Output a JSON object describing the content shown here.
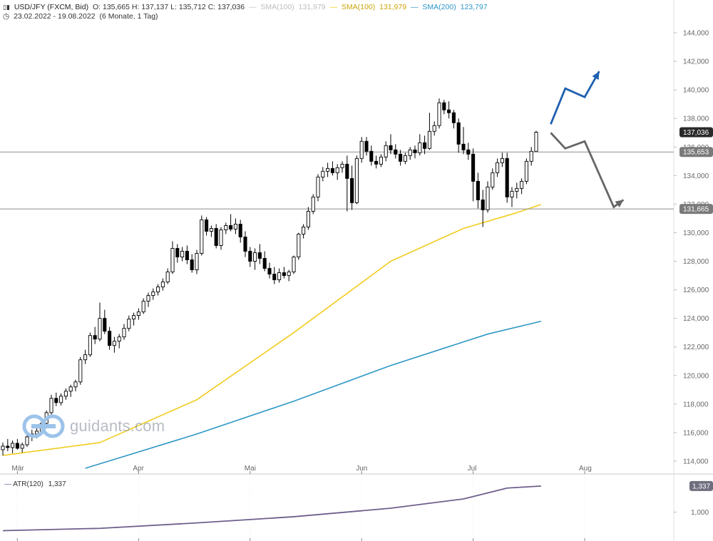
{
  "header": {
    "instrument_icon": "candlestick-icon",
    "symbol": "USD/JFY (FXCM, Bid)",
    "ohlc": "O: 135,665  H: 137,137  L: 135,712  C: 137,036",
    "sma_a_label": "SMA(100)",
    "sma_a_value": "131,979",
    "sma_a_color": "#c8c8c8",
    "sma_b_label": "SMA(100)",
    "sma_b_value": "131,979",
    "sma_b_color": "#f2cc1f",
    "sma_c_label": "SMA(200)",
    "sma_c_value": "123,797",
    "sma_c_color": "#2f97c6",
    "clock_icon": "clock-icon",
    "range": "23.02.2022 - 19.08.2022",
    "period": "(6 Monate, 1 Tag)"
  },
  "watermark": {
    "logo_icon": "guidants-logo-icon",
    "text": "guidants.com"
  },
  "indicator": {
    "label": "ATR(120)",
    "value": "1,337",
    "current_badge": "1,337",
    "axis_tick": "1,000",
    "color": "#6e5f8c"
  },
  "chart_data": {
    "type": "candlestick",
    "y_ticks": [
      "144,000",
      "142,000",
      "140,000",
      "138,000",
      "136,000",
      "134,000",
      "132,000",
      "130,000",
      "128,000",
      "126,000",
      "124,000",
      "122,000",
      "120,000",
      "118,000",
      "116,000",
      "114,000"
    ],
    "y_tick_values": [
      144,
      142,
      140,
      138,
      136,
      134,
      132,
      130,
      128,
      126,
      124,
      122,
      120,
      118,
      116,
      114
    ],
    "ylim": [
      113.2,
      144.8
    ],
    "x_labels": [
      "Mär",
      "Apr",
      "Mai",
      "Jun",
      "Jul",
      "Aug"
    ],
    "x_label_index": [
      3,
      28,
      51,
      74,
      97,
      120
    ],
    "n_days": 140,
    "horizontal_lines": [
      {
        "value": 135.653,
        "label": "135,653"
      },
      {
        "value": 131.665,
        "label": "131,665"
      }
    ],
    "last_price_badge": {
      "value": 137.036,
      "label": "137,036"
    },
    "candles": [
      [
        114.8,
        115.3,
        114.4,
        115.05
      ],
      [
        115.05,
        115.55,
        114.7,
        114.95
      ],
      [
        114.95,
        115.45,
        114.55,
        115.25
      ],
      [
        115.25,
        115.55,
        114.8,
        114.9
      ],
      [
        114.9,
        115.3,
        114.6,
        115.15
      ],
      [
        115.15,
        115.85,
        115.0,
        115.7
      ],
      [
        115.7,
        116.2,
        115.4,
        115.9
      ],
      [
        115.9,
        116.3,
        115.6,
        116.1
      ],
      [
        116.1,
        116.85,
        115.9,
        116.65
      ],
      [
        116.65,
        117.55,
        116.5,
        117.4
      ],
      [
        117.4,
        118.65,
        117.25,
        118.4
      ],
      [
        118.4,
        118.8,
        117.85,
        118.1
      ],
      [
        118.1,
        118.75,
        117.9,
        118.55
      ],
      [
        118.55,
        119.1,
        118.3,
        118.9
      ],
      [
        118.9,
        119.35,
        118.5,
        119.2
      ],
      [
        119.2,
        119.7,
        118.9,
        119.55
      ],
      [
        119.55,
        121.3,
        119.35,
        121.1
      ],
      [
        121.1,
        121.8,
        120.8,
        121.45
      ],
      [
        121.45,
        123.0,
        121.3,
        122.8
      ],
      [
        122.8,
        123.4,
        122.2,
        122.55
      ],
      [
        122.55,
        125.1,
        122.4,
        124.0
      ],
      [
        124.0,
        124.6,
        122.9,
        123.1
      ],
      [
        123.1,
        123.4,
        121.8,
        122.1
      ],
      [
        122.1,
        122.7,
        121.6,
        122.4
      ],
      [
        122.4,
        122.9,
        121.9,
        122.7
      ],
      [
        122.7,
        123.6,
        122.5,
        123.3
      ],
      [
        123.3,
        124.2,
        123.1,
        123.95
      ],
      [
        123.95,
        124.4,
        123.5,
        124.2
      ],
      [
        124.2,
        124.7,
        123.9,
        124.45
      ],
      [
        124.45,
        125.4,
        124.3,
        125.2
      ],
      [
        125.2,
        125.8,
        124.8,
        125.6
      ],
      [
        125.6,
        126.1,
        125.3,
        125.85
      ],
      [
        125.85,
        126.4,
        125.6,
        126.2
      ],
      [
        126.2,
        126.8,
        125.95,
        126.55
      ],
      [
        126.55,
        127.5,
        126.4,
        127.25
      ],
      [
        127.25,
        129.4,
        127.1,
        128.9
      ],
      [
        128.9,
        129.2,
        127.9,
        128.3
      ],
      [
        128.3,
        129.0,
        128.0,
        128.7
      ],
      [
        128.7,
        129.1,
        127.8,
        128.1
      ],
      [
        128.1,
        128.5,
        127.2,
        127.4
      ],
      [
        127.4,
        128.8,
        127.1,
        128.55
      ],
      [
        128.55,
        131.2,
        128.4,
        130.9
      ],
      [
        130.9,
        131.1,
        129.8,
        130.1
      ],
      [
        130.1,
        130.5,
        129.7,
        130.3
      ],
      [
        130.3,
        130.6,
        128.9,
        129.1
      ],
      [
        129.1,
        130.4,
        128.8,
        130.2
      ],
      [
        130.2,
        130.7,
        129.9,
        130.5
      ],
      [
        130.5,
        131.3,
        130.1,
        130.25
      ],
      [
        130.25,
        131.0,
        129.9,
        130.6
      ],
      [
        130.6,
        130.9,
        129.3,
        129.7
      ],
      [
        129.7,
        130.1,
        128.3,
        128.7
      ],
      [
        128.7,
        129.0,
        127.6,
        128.0
      ],
      [
        128.0,
        128.9,
        127.4,
        128.6
      ],
      [
        128.6,
        129.2,
        127.8,
        128.2
      ],
      [
        128.2,
        128.7,
        127.3,
        127.5
      ],
      [
        127.5,
        127.9,
        126.8,
        127.1
      ],
      [
        127.1,
        127.6,
        126.4,
        126.7
      ],
      [
        126.7,
        127.5,
        126.5,
        127.2
      ],
      [
        127.2,
        127.6,
        126.8,
        127.0
      ],
      [
        127.0,
        127.4,
        126.6,
        127.25
      ],
      [
        127.25,
        128.4,
        127.1,
        128.3
      ],
      [
        128.3,
        130.0,
        128.1,
        129.9
      ],
      [
        129.9,
        130.6,
        129.6,
        130.4
      ],
      [
        130.4,
        131.8,
        130.2,
        131.5
      ],
      [
        131.5,
        132.7,
        131.3,
        132.5
      ],
      [
        132.5,
        134.1,
        132.2,
        133.9
      ],
      [
        133.9,
        134.6,
        133.6,
        134.3
      ],
      [
        134.3,
        134.9,
        133.9,
        134.5
      ],
      [
        134.5,
        135.0,
        134.0,
        134.2
      ],
      [
        134.2,
        134.8,
        133.7,
        134.55
      ],
      [
        134.55,
        135.0,
        134.2,
        134.8
      ],
      [
        134.8,
        135.4,
        131.5,
        133.8
      ],
      [
        133.8,
        134.7,
        131.6,
        132.1
      ],
      [
        132.1,
        135.4,
        132.0,
        135.2
      ],
      [
        135.2,
        136.7,
        134.9,
        136.4
      ],
      [
        136.4,
        136.7,
        135.4,
        135.7
      ],
      [
        135.7,
        136.1,
        134.7,
        135.0
      ],
      [
        135.0,
        135.4,
        134.5,
        134.8
      ],
      [
        134.8,
        135.5,
        134.6,
        135.3
      ],
      [
        135.3,
        136.4,
        135.0,
        136.1
      ],
      [
        136.1,
        136.9,
        135.5,
        135.8
      ],
      [
        135.8,
        136.2,
        135.2,
        135.5
      ],
      [
        135.5,
        135.8,
        134.7,
        135.0
      ],
      [
        135.0,
        135.6,
        134.8,
        135.4
      ],
      [
        135.4,
        136.0,
        135.1,
        135.8
      ],
      [
        135.8,
        136.1,
        135.2,
        135.6
      ],
      [
        135.6,
        136.9,
        135.4,
        136.3
      ],
      [
        136.3,
        136.8,
        135.5,
        135.9
      ],
      [
        135.9,
        138.4,
        135.8,
        137.1
      ],
      [
        137.1,
        137.8,
        136.8,
        137.5
      ],
      [
        137.5,
        139.4,
        137.3,
        139.1
      ],
      [
        139.1,
        139.3,
        138.3,
        138.6
      ],
      [
        138.6,
        139.2,
        138.0,
        138.4
      ],
      [
        138.4,
        138.6,
        137.3,
        137.7
      ],
      [
        137.7,
        138.0,
        135.6,
        136.2
      ],
      [
        136.2,
        137.4,
        135.5,
        135.8
      ],
      [
        135.8,
        136.3,
        135.1,
        135.5
      ],
      [
        135.5,
        135.9,
        132.2,
        133.6
      ],
      [
        133.6,
        134.2,
        131.7,
        132.3
      ],
      [
        132.3,
        133.0,
        130.4,
        131.6
      ],
      [
        131.6,
        133.6,
        131.4,
        133.2
      ],
      [
        133.2,
        134.5,
        133.0,
        134.2
      ],
      [
        134.2,
        135.2,
        133.9,
        134.9
      ],
      [
        134.9,
        135.6,
        134.6,
        135.2
      ],
      [
        135.2,
        135.6,
        132.1,
        132.5
      ],
      [
        132.5,
        133.2,
        131.8,
        132.9
      ],
      [
        132.9,
        133.5,
        132.4,
        133.1
      ],
      [
        133.1,
        133.8,
        132.7,
        133.6
      ],
      [
        133.6,
        135.2,
        133.4,
        135.0
      ],
      [
        135.0,
        136.0,
        134.7,
        135.7
      ],
      [
        135.7,
        137.137,
        135.712,
        137.036
      ]
    ],
    "candle_day_index": [
      0,
      1,
      2,
      3,
      4,
      5,
      6,
      7,
      8,
      9,
      10,
      11,
      12,
      13,
      14,
      15,
      16,
      17,
      18,
      19,
      20,
      21,
      22,
      23,
      24,
      25,
      26,
      27,
      28,
      29,
      30,
      31,
      32,
      33,
      34,
      35,
      36,
      37,
      38,
      39,
      40,
      41,
      42,
      43,
      44,
      45,
      46,
      47,
      48,
      49,
      50,
      51,
      52,
      53,
      54,
      55,
      56,
      57,
      58,
      59,
      60,
      61,
      62,
      63,
      64,
      65,
      66,
      67,
      68,
      69,
      70,
      71,
      72,
      73,
      74,
      75,
      76,
      77,
      78,
      79,
      80,
      81,
      82,
      83,
      84,
      85,
      86,
      87,
      88,
      89,
      90,
      91,
      92,
      93,
      94,
      95,
      96,
      97,
      98,
      99,
      100,
      101,
      102,
      103,
      104,
      105,
      106,
      107,
      108,
      109,
      110,
      111
    ],
    "sma100": {
      "name": "SMA(100)",
      "x": [
        0,
        20,
        40,
        60,
        80,
        95,
        106,
        111
      ],
      "y": [
        114.4,
        115.3,
        118.3,
        123.0,
        128.0,
        130.3,
        131.4,
        131.979
      ]
    },
    "sma200": {
      "name": "SMA(200)",
      "x": [
        17,
        40,
        60,
        80,
        100,
        111
      ],
      "y": [
        113.5,
        115.9,
        118.2,
        120.7,
        122.9,
        123.797
      ]
    },
    "atr": {
      "name": "ATR(120)",
      "x": [
        0,
        20,
        40,
        60,
        80,
        95,
        104,
        111
      ],
      "y": [
        0.76,
        0.79,
        0.86,
        0.94,
        1.05,
        1.17,
        1.31,
        1.337
      ],
      "ylim": [
        0.7,
        1.4
      ]
    },
    "scenario_up": {
      "x": [
        113,
        116,
        120,
        123
      ],
      "y": [
        137.6,
        140.1,
        139.5,
        141.3
      ]
    },
    "scenario_down": {
      "x": [
        113,
        116,
        120,
        126,
        128
      ],
      "y": [
        137.0,
        135.9,
        136.4,
        131.8,
        132.3
      ]
    },
    "colors": {
      "candle": "#000000",
      "sma100": "#f2cc1f",
      "sma200": "#2f97c6",
      "hline": "#8e8e8e",
      "badge": "#2a2a2a",
      "up_arrow": "#1f5fb0",
      "down_arrow": "#666666",
      "grid": "#ececec"
    }
  }
}
